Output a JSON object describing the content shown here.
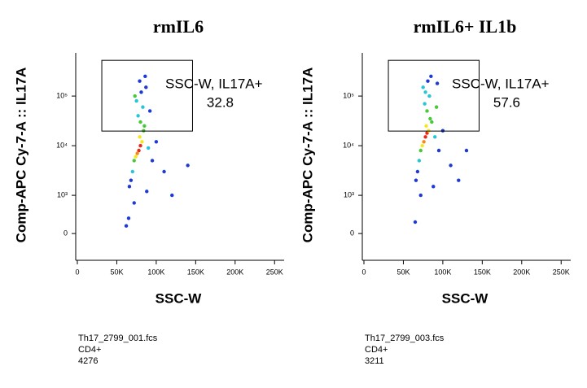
{
  "chart_data": [
    {
      "type": "scatter",
      "title": "rmIL6",
      "x_label": "SSC-W",
      "y_label": "Comp-APC Cy-7-A :: IL17A",
      "xlim": [
        0,
        262144
      ],
      "xticks": [
        0,
        {
          "value": 50000,
          "label": "50K"
        },
        {
          "value": 100000,
          "label": "100K"
        },
        {
          "value": 150000,
          "label": "150K"
        },
        {
          "value": 200000,
          "label": "200K"
        },
        {
          "value": 250000,
          "label": "250K"
        }
      ],
      "ylim": [
        -700,
        700000
      ],
      "yscale": "biex",
      "yticks": [
        0,
        {
          "value": 1000,
          "label": "10³"
        },
        {
          "value": 10000,
          "label": "10⁴"
        },
        {
          "value": 100000,
          "label": "10⁵"
        }
      ],
      "series": [
        {
          "x": [
            78000,
            80000,
            76000,
            82000,
            74000,
            79000,
            84000,
            72000,
            80000,
            77000,
            83000,
            75000,
            81000,
            79000,
            86000,
            70000,
            68000,
            90000,
            66000,
            72000,
            65000,
            95000,
            110000,
            88000,
            62000,
            100000,
            92000,
            73000,
            87000,
            120000,
            140000,
            85000
          ],
          "values": [
            8000,
            10000,
            7000,
            12000,
            6000,
            15000,
            20000,
            5000,
            30000,
            40000,
            60000,
            80000,
            120000,
            200000,
            250000,
            3000,
            2000,
            9000,
            1500,
            800,
            400,
            5000,
            3000,
            1200,
            200,
            12000,
            50000,
            100000,
            150000,
            1000,
            4000,
            25000
          ],
          "colors": [
            "#e8291c",
            "#e8291c",
            "#f48a1a",
            "#f6e61c",
            "#f6e61c",
            "#f6e61c",
            "#49c83a",
            "#49c83a",
            "#49c83a",
            "#27c5d8",
            "#27c5d8",
            "#27c5d8",
            "#1d39d6",
            "#1d39d6",
            "#1d39d6",
            "#27c5d8",
            "#1d39d6",
            "#27c5d8",
            "#1d39d6",
            "#1d39d6",
            "#1d39d6",
            "#1d39d6",
            "#1d39d6",
            "#1d39d6",
            "#1d39d6",
            "#1d39d6",
            "#1d39d6",
            "#49c83a",
            "#1d39d6",
            "#1d39d6",
            "#1d39d6",
            "#49c83a"
          ]
        }
      ],
      "gate": {
        "name": "SSC-W, IL17A+",
        "percent": 32.8,
        "x": [
          31000,
          146000
        ],
        "y": [
          19700,
          525000
        ]
      },
      "footer": [
        "Th17_2799_001.fcs",
        "CD4+",
        4276
      ]
    },
    {
      "type": "scatter",
      "title": "rmIL6+ IL1b",
      "x_label": "SSC-W",
      "y_label": "Comp-APC Cy-7-A :: IL17A",
      "xlim": [
        0,
        262144
      ],
      "xticks": [
        0,
        {
          "value": 50000,
          "label": "50K"
        },
        {
          "value": 100000,
          "label": "100K"
        },
        {
          "value": 150000,
          "label": "150K"
        },
        {
          "value": 200000,
          "label": "200K"
        },
        {
          "value": 250000,
          "label": "250K"
        }
      ],
      "ylim": [
        -700,
        700000
      ],
      "yscale": "biex",
      "yticks": [
        0,
        {
          "value": 1000,
          "label": "10³"
        },
        {
          "value": 10000,
          "label": "10⁴"
        },
        {
          "value": 100000,
          "label": "10⁵"
        }
      ],
      "series": [
        {
          "x": [
            78000,
            80000,
            76000,
            82000,
            74000,
            79000,
            84000,
            72000,
            80000,
            77000,
            83000,
            75000,
            81000,
            85000,
            70000,
            68000,
            90000,
            66000,
            72000,
            65000,
            95000,
            110000,
            88000,
            100000,
            92000,
            120000,
            130000,
            86000,
            78000,
            93000
          ],
          "values": [
            15000,
            18000,
            12000,
            20000,
            10000,
            25000,
            35000,
            8000,
            50000,
            70000,
            100000,
            150000,
            200000,
            250000,
            5000,
            3000,
            15000,
            2000,
            1000,
            300,
            8000,
            4000,
            1500,
            20000,
            60000,
            2000,
            8000,
            30000,
            120000,
            180000
          ],
          "colors": [
            "#e8291c",
            "#e8291c",
            "#f48a1a",
            "#f6e61c",
            "#f6e61c",
            "#f6e61c",
            "#49c83a",
            "#49c83a",
            "#49c83a",
            "#27c5d8",
            "#27c5d8",
            "#27c5d8",
            "#1d39d6",
            "#1d39d6",
            "#27c5d8",
            "#1d39d6",
            "#27c5d8",
            "#1d39d6",
            "#1d39d6",
            "#1d39d6",
            "#1d39d6",
            "#1d39d6",
            "#1d39d6",
            "#1d39d6",
            "#49c83a",
            "#1d39d6",
            "#1d39d6",
            "#49c83a",
            "#27c5d8",
            "#1d39d6"
          ]
        }
      ],
      "gate": {
        "name": "SSC-W, IL17A+",
        "percent": 57.6,
        "x": [
          31000,
          146000
        ],
        "y": [
          19700,
          525000
        ]
      },
      "footer": [
        "Th17_2799_003.fcs",
        "CD4+",
        3211
      ]
    }
  ]
}
